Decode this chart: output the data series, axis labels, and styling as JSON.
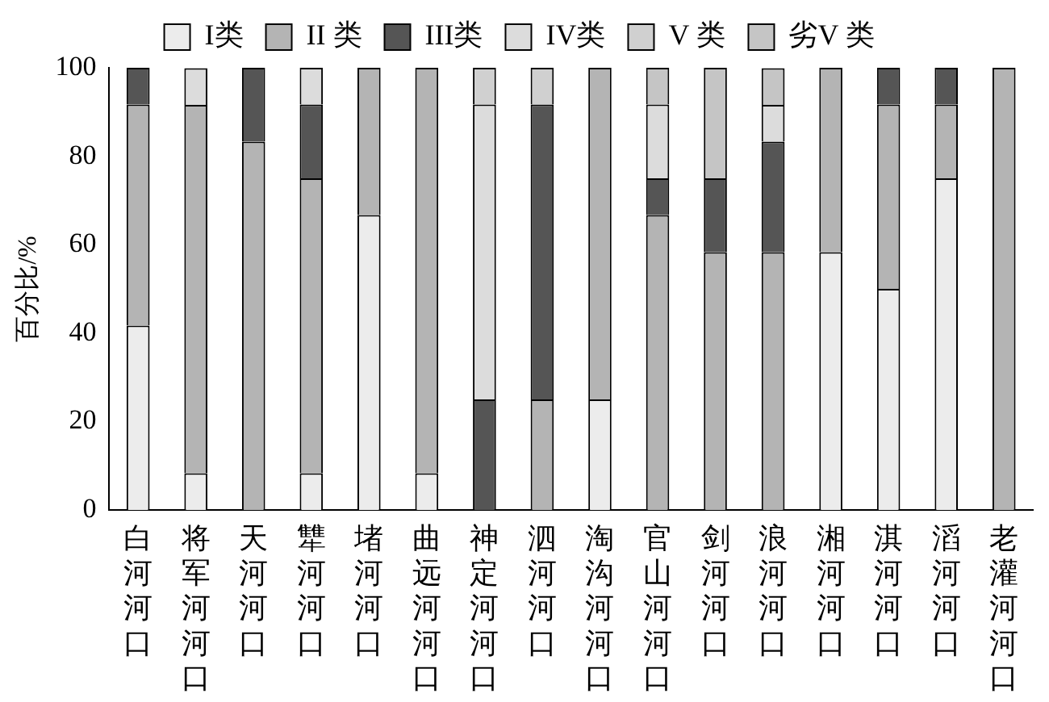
{
  "chart_data": {
    "type": "bar",
    "stacked": true,
    "ylabel": "百分比/%",
    "ylim": [
      0,
      100
    ],
    "yticks": [
      0,
      20,
      40,
      60,
      80,
      100
    ],
    "grid": false,
    "legend": "top",
    "categories": [
      "白河河口",
      "将军河河口",
      "天河河口",
      "犨河河口",
      "堵河河口",
      "曲远河河口",
      "神定河河口",
      "泗河河口",
      "淘沟河河口",
      "官山河河口",
      "剑河河口",
      "浪河河口",
      "湘河河口",
      "淇河河口",
      "滔河河口",
      "老灌河河口"
    ],
    "series": [
      {
        "name": "I类",
        "color": "#ececec",
        "values": [
          41.7,
          8.3,
          0,
          8.3,
          66.7,
          8.3,
          0,
          0,
          25,
          0,
          0,
          0,
          58.3,
          50,
          75,
          0
        ]
      },
      {
        "name": "II 类",
        "color": "#b4b4b4",
        "values": [
          50,
          83.3,
          83.3,
          66.7,
          33.3,
          91.7,
          0,
          25,
          75,
          66.7,
          58.3,
          58.3,
          41.7,
          41.7,
          16.7,
          100
        ]
      },
      {
        "name": "III类",
        "color": "#555555",
        "values": [
          8.3,
          0,
          16.7,
          16.7,
          0,
          0,
          25,
          66.7,
          0,
          8.3,
          16.7,
          25,
          0,
          8.3,
          8.3,
          0
        ]
      },
      {
        "name": "IV类",
        "color": "#dcdcdc",
        "values": [
          0,
          8.3,
          0,
          8.3,
          0,
          0,
          66.7,
          0,
          0,
          16.7,
          0,
          8.3,
          0,
          0,
          0,
          0
        ]
      },
      {
        "name": "V 类",
        "color": "#d0d0d0",
        "values": [
          0,
          0,
          0,
          0,
          0,
          0,
          8.3,
          8.3,
          0,
          0,
          0,
          0,
          0,
          0,
          0,
          0
        ]
      },
      {
        "name": "劣V 类",
        "color": "#c5c5c5",
        "values": [
          0,
          0,
          0,
          0,
          0,
          0,
          0,
          0,
          0,
          8.3,
          25,
          8.3,
          0,
          0,
          0,
          0
        ]
      }
    ]
  }
}
